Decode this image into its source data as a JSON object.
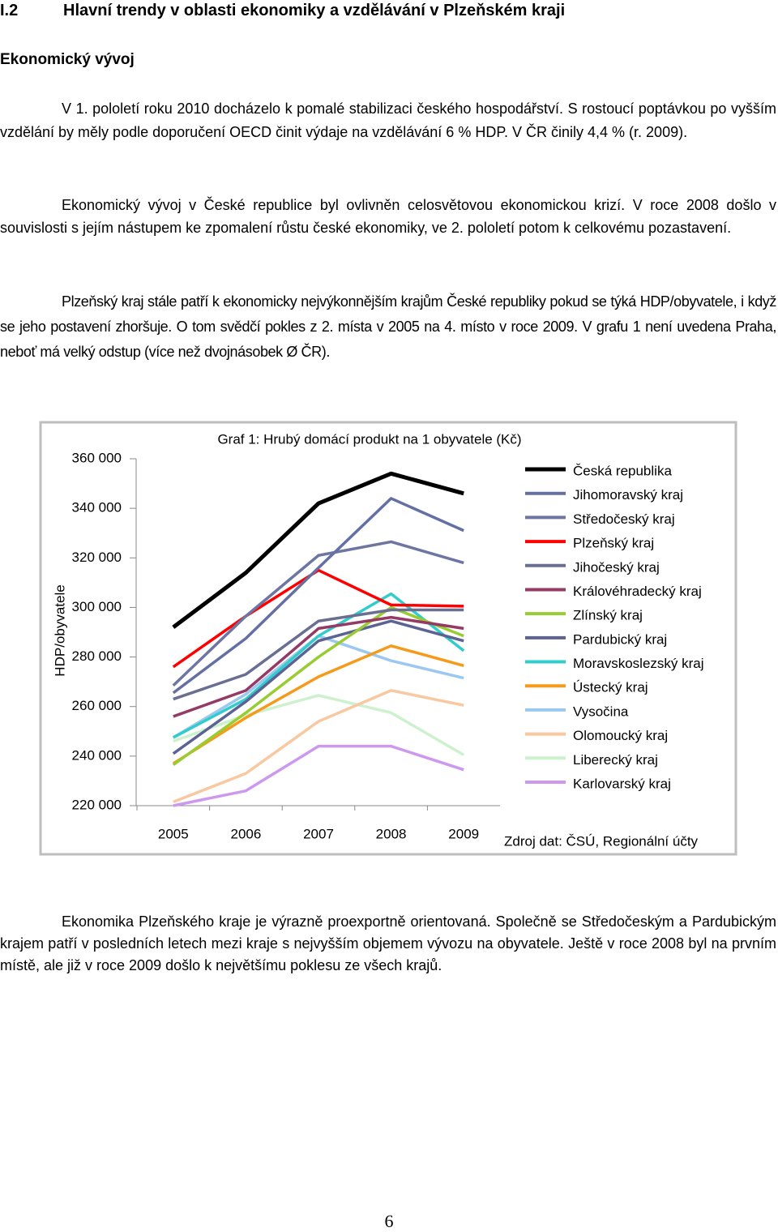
{
  "document": {
    "heading_number": "I.2",
    "heading": "Hlavní trendy v oblasti ekonomiky a vzdělávání v Plzeňském kraji",
    "subheading": "Ekonomický vývoj",
    "paragraphs": [
      "V 1. pololetí roku 2010 docházelo k pomalé stabilizaci českého hospodářství. S rostoucí poptávkou po vyšším vzdělání by měly podle doporučení OECD činit výdaje na vzdělávání 6 % HDP. V ČR činily 4,4 % (r. 2009).",
      "Ekonomický vývoj v České republice byl ovlivněn celosvětovou ekonomickou krizí. V roce 2008 došlo v souvislosti s jejím nástupem ke zpomalení růstu české ekonomiky, ve 2. pololetí potom k celkovému pozastavení.",
      "Plzeňský kraj stále patří k ekonomicky nejvýkonnějším krajům České republiky pokud se týká HDP/obyvatele, i když se jeho postavení zhoršuje. O tom svědčí pokles z 2. místa v 2005 na 4. místo v roce 2009. V grafu 1 není uvedena Praha, neboť má velký odstup (více než dvojnásobek Ø ČR)."
    ],
    "paragraphs_after": [
      "Ekonomika Plzeňského kraje je výrazně proexportně orientovaná. Společně se Středočeským a Pardubickým krajem patří v posledních letech mezi kraje s nejvyšším objemem vývozu na obyvatele. Ještě v roce 2008 byl na prvním místě, ale již v roce 2009 došlo k největšímu poklesu ze všech krajů."
    ],
    "page_number": "6"
  },
  "chart_data": {
    "type": "line",
    "title": "Graf 1: Hrubý domácí produkt na 1 obyvatele (Kč)",
    "ylabel": "HDP/obyvatele",
    "source": "Zdroj dat: ČSÚ, Regionální účty",
    "categories": [
      "2005",
      "2006",
      "2007",
      "2008",
      "2009"
    ],
    "ylim": [
      220000,
      360000
    ],
    "yticks": [
      {
        "value": 220000,
        "label": "220 000"
      },
      {
        "value": 240000,
        "label": "240 000"
      },
      {
        "value": 260000,
        "label": "260 000"
      },
      {
        "value": 280000,
        "label": "280 000"
      },
      {
        "value": 300000,
        "label": "300 000"
      },
      {
        "value": 320000,
        "label": "320 000"
      },
      {
        "value": 340000,
        "label": "340 000"
      },
      {
        "value": 360000,
        "label": "360 000"
      }
    ],
    "legend": "right",
    "series": [
      {
        "name": "Česká republika",
        "color": "#000000",
        "values": [
          292000,
          314000,
          342000,
          354000,
          346000
        ]
      },
      {
        "name": "Jihomoravský kraj",
        "color": "#6470a4",
        "values": [
          265500,
          287500,
          316000,
          344000,
          331000
        ]
      },
      {
        "name": "Středočeský kraj",
        "color": "#6d76a2",
        "values": [
          268500,
          296500,
          321000,
          326500,
          318000
        ]
      },
      {
        "name": "Plzeňský kraj",
        "color": "#ff0000",
        "values": [
          276000,
          296500,
          315000,
          301000,
          300500
        ]
      },
      {
        "name": "Jihočeský kraj",
        "color": "#6a6f92",
        "values": [
          263000,
          273000,
          294500,
          299000,
          299000
        ]
      },
      {
        "name": "Královéhradecký kraj",
        "color": "#953a64",
        "values": [
          256000,
          266500,
          291500,
          296000,
          291500
        ]
      },
      {
        "name": "Zlínský kraj",
        "color": "#99cc33",
        "values": [
          236500,
          257500,
          280000,
          300000,
          288500
        ]
      },
      {
        "name": "Pardubický kraj",
        "color": "#5a6394",
        "values": [
          241000,
          262000,
          286500,
          294500,
          286500
        ]
      },
      {
        "name": "Moravskoslezský kraj",
        "color": "#33cccc",
        "values": [
          247500,
          263000,
          288500,
          305500,
          282500
        ]
      },
      {
        "name": "Ústecký kraj",
        "color": "#f59a1b",
        "values": [
          237000,
          255500,
          272000,
          284500,
          276500
        ]
      },
      {
        "name": "Vysočina",
        "color": "#9cc8f0",
        "values": [
          247500,
          265000,
          288500,
          278500,
          271500
        ]
      },
      {
        "name": "Olomoucký kraj",
        "color": "#f8c8a0",
        "values": [
          221500,
          233000,
          254000,
          266500,
          260500
        ]
      },
      {
        "name": "Liberecký kraj",
        "color": "#cdf1cd",
        "values": [
          246000,
          256500,
          264500,
          257500,
          240500
        ]
      },
      {
        "name": "Karlovarský kraj",
        "color": "#cc99ee",
        "values": [
          220000,
          226000,
          244000,
          244000,
          234500
        ]
      }
    ]
  }
}
